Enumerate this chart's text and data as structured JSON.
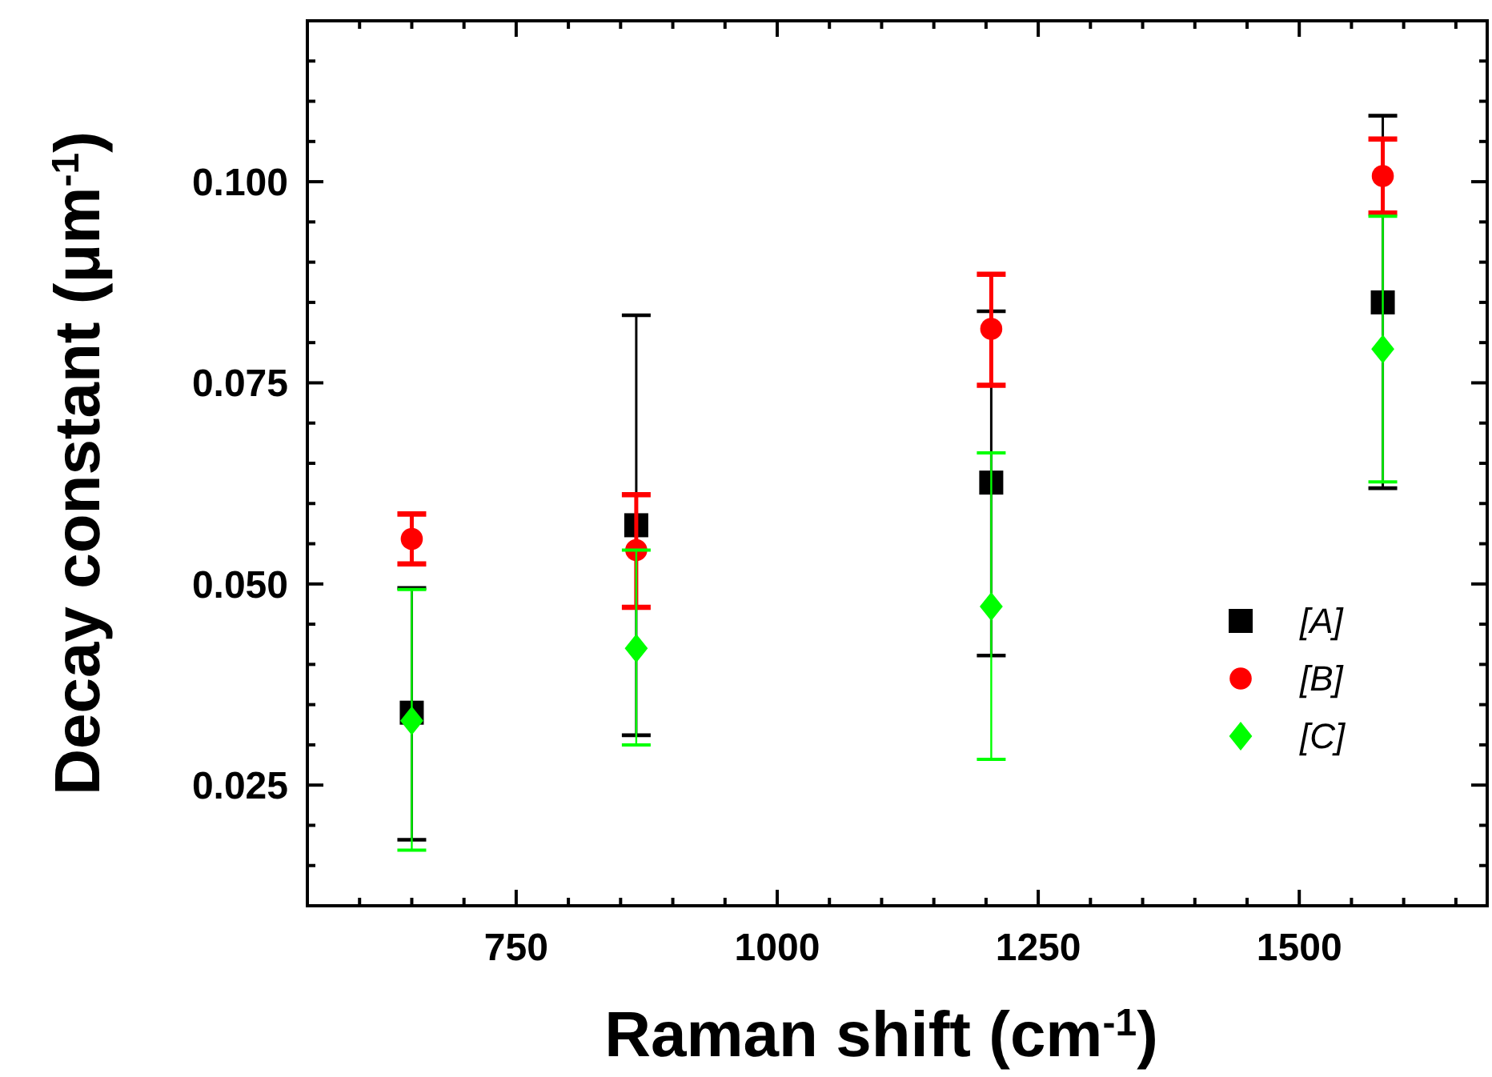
{
  "chart_data": {
    "type": "scatter",
    "xlabel": "Raman shift (cm$^{-1}$)",
    "ylabel": "Decay constant (μm$^{-1}$)",
    "x": [
      650,
      865,
      1205,
      1580
    ],
    "series": [
      {
        "name": "[A]",
        "color": "#000000",
        "marker": "square",
        "values": [
          0.034,
          0.0573,
          0.0626,
          0.085
        ],
        "errors": [
          [
            0.0182,
            0.0495
          ],
          [
            0.0312,
            0.0834
          ],
          [
            0.0411,
            0.0839
          ],
          [
            0.0619,
            0.1082
          ]
        ]
      },
      {
        "name": "[B]",
        "color": "#ff0000",
        "marker": "circle",
        "values": [
          0.0556,
          0.0542,
          0.0817,
          0.1007
        ],
        "errors": [
          [
            0.0525,
            0.0587
          ],
          [
            0.0471,
            0.0611
          ],
          [
            0.0747,
            0.0885
          ],
          [
            0.0961,
            0.1053
          ]
        ]
      },
      {
        "name": "[C]",
        "color": "#00ff00",
        "marker": "diamond",
        "values": [
          0.033,
          0.042,
          0.0472,
          0.0792
        ],
        "errors": [
          [
            0.0169,
            0.0493
          ],
          [
            0.03,
            0.0542
          ],
          [
            0.0282,
            0.0663
          ],
          [
            0.0627,
            0.0957
          ]
        ]
      }
    ],
    "xlim": [
      550,
      1680
    ],
    "xticks": [
      {
        "value": 600,
        "label": null
      },
      {
        "value": 650,
        "label": null
      },
      {
        "value": 700,
        "label": null
      },
      750,
      {
        "value": 800,
        "label": null
      },
      {
        "value": 850,
        "label": null
      },
      {
        "value": 900,
        "label": null
      },
      {
        "value": 950,
        "label": null
      },
      1000,
      {
        "value": 1050,
        "label": null
      },
      {
        "value": 1100,
        "label": null
      },
      {
        "value": 1150,
        "label": null
      },
      {
        "value": 1200,
        "label": null
      },
      1250,
      {
        "value": 1300,
        "label": null
      },
      {
        "value": 1350,
        "label": null
      },
      {
        "value": 1400,
        "label": null
      },
      {
        "value": 1450,
        "label": null
      },
      1500,
      {
        "value": 1550,
        "label": null
      },
      {
        "value": 1600,
        "label": null
      },
      {
        "value": 1650,
        "label": null
      }
    ],
    "ylim": [
      0.01,
      0.12
    ],
    "yticks": [
      {
        "value": 0.015,
        "label": null
      },
      {
        "value": 0.02,
        "label": null
      },
      {
        "value": 0.025,
        "label": "0.025"
      },
      {
        "value": 0.03,
        "label": null
      },
      {
        "value": 0.035,
        "label": null
      },
      {
        "value": 0.04,
        "label": null
      },
      {
        "value": 0.045,
        "label": null
      },
      {
        "value": 0.05,
        "label": "0.050"
      },
      {
        "value": 0.055,
        "label": null
      },
      {
        "value": 0.06,
        "label": null
      },
      {
        "value": 0.065,
        "label": null
      },
      {
        "value": 0.07,
        "label": null
      },
      {
        "value": 0.075,
        "label": "0.075"
      },
      {
        "value": 0.08,
        "label": null
      },
      {
        "value": 0.085,
        "label": null
      },
      {
        "value": 0.09,
        "label": null
      },
      {
        "value": 0.095,
        "label": null
      },
      {
        "value": 0.1,
        "label": "0.100"
      },
      {
        "value": 0.105,
        "label": null
      },
      {
        "value": 0.11,
        "label": null
      },
      {
        "value": 0.115,
        "label": null
      }
    ],
    "legend": "right",
    "grid": false,
    "line_style": "none"
  }
}
